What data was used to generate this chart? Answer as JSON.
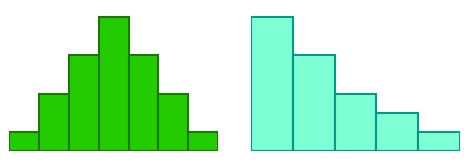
{
  "left_bars": [
    1,
    3,
    5,
    7,
    5,
    3,
    1
  ],
  "right_bars": [
    7,
    5,
    3,
    2,
    1
  ],
  "left_color": "#22cc00",
  "left_edge": "#1a7700",
  "right_color": "#7fffd4",
  "right_edge": "#009988",
  "bg_color": "#ffffff",
  "linewidth": 1.5,
  "figsize": [
    4.74,
    1.64
  ],
  "dpi": 100
}
